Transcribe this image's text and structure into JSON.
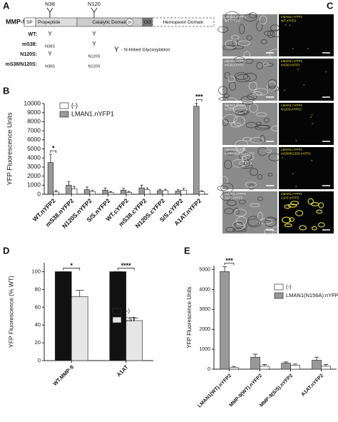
{
  "panel_labels": [
    "A",
    "B",
    "C",
    "D",
    "E"
  ],
  "domain_diagram": {
    "protein": "MMP-9",
    "domains": [
      "SP",
      "Propeptide",
      "Catalytic Domain",
      "Zn",
      "OG",
      "Hemopexin Domain"
    ],
    "sites": [
      "N38",
      "N120"
    ],
    "variants": [
      {
        "name": "WT:",
        "cells": [
          "Y",
          "Y"
        ]
      },
      {
        "name": "mS38:",
        "cells": [
          "N38S",
          "Y"
        ]
      },
      {
        "name": "N120S:",
        "cells": [
          "Y",
          "N120S"
        ]
      },
      {
        "name": "mS38/N120S:",
        "cells": [
          "N38S",
          "N120S"
        ]
      }
    ],
    "legend_symbol": "Y",
    "legend_text": "- N-linked Glycosylation"
  },
  "microscopy": {
    "rows": [
      {
        "left": [
          "LMAN1.nYFP1",
          "WT.nYFP2"
        ],
        "right": [
          "LMAN1.nYFP1",
          "WT.nYFP2"
        ]
      },
      {
        "left": [
          "LMAN1.nYFP1",
          "mS38.nYFP2"
        ],
        "right": [
          "LMAN1.nYFP1",
          "mS38.nYFP2"
        ]
      },
      {
        "left": [
          "LMAN1.nYFP1",
          "N120S.nYFP2"
        ],
        "right": [
          "LMAN1.nYFP1",
          "N120S.nYFP2"
        ]
      },
      {
        "left": [
          "LMAN1.nYFP1",
          "mS38/N120S.nYFP2"
        ],
        "right": [
          "LMAN1.nYFP1",
          "mS38/N120S.nYFP2"
        ]
      },
      {
        "left": [
          "LMAN1.nYFP1",
          "A1AT.nYFP2"
        ],
        "right": [
          "LMAN1.nYFP1",
          "A1AT.nYFP2"
        ]
      }
    ]
  },
  "chart_data": [
    {
      "type": "bar",
      "y_label": "YFP Fluorescence Units",
      "categories": [
        "WT.nYFP2",
        "mS38.nYFP2",
        "N120S.nYFP2",
        "S/S.nYFP2",
        "WT.cYFP2",
        "mS38.cYFP2",
        "N120S.cYFP2",
        "S/S.cYFP2",
        "A1AT.nYFP2"
      ],
      "series": [
        {
          "name": "(-)",
          "color": "#ffffff",
          "values": [
            250,
            600,
            300,
            200,
            200,
            500,
            400,
            450,
            300
          ],
          "errors": [
            150,
            250,
            150,
            100,
            100,
            200,
            150,
            200,
            80
          ]
        },
        {
          "name": "LMAN1.nYFP1",
          "color": "#999999",
          "values": [
            3500,
            1000,
            500,
            450,
            450,
            700,
            400,
            350,
            9700
          ],
          "errors": [
            900,
            400,
            300,
            250,
            200,
            300,
            150,
            150,
            350
          ]
        }
      ],
      "ylim": [
        0,
        10000
      ],
      "yticks": [
        0,
        1000,
        2000,
        3000,
        4000,
        5000,
        6000,
        7000,
        8000,
        9000,
        10000
      ],
      "annotations": [
        {
          "text": "*",
          "category": "WT.nYFP2"
        },
        {
          "text": "***",
          "category": "A1AT.nYFP2"
        }
      ]
    },
    {
      "type": "bar",
      "y_label": "YFP Fluorescence (% WT)",
      "categories": [
        "WT.MMP-9",
        "A1AT"
      ],
      "series": [
        {
          "name": "(-)",
          "color": "#111111",
          "values": [
            100,
            100
          ],
          "errors": [
            0,
            0
          ]
        },
        {
          "name": "CST",
          "color": "#e6e6e6",
          "values": [
            72,
            45
          ],
          "errors": [
            7,
            3
          ]
        }
      ],
      "ylim": [
        0,
        110
      ],
      "yticks": [
        0,
        20,
        40,
        60,
        80,
        100
      ],
      "annotations": [
        {
          "text": "*",
          "category": "WT.MMP-9"
        },
        {
          "text": "****",
          "category": "A1AT"
        }
      ]
    },
    {
      "type": "bar",
      "y_label": "YFP Fluorescence Units",
      "categories": [
        "LMAN1(WT).nYFP2",
        "MMP-9(WT).nYFP2",
        "MMP-9(S/S).nYFP2",
        "A1AT.nYFP2"
      ],
      "series": [
        {
          "name": "(-)",
          "color": "#ffffff",
          "values": [
            80,
            150,
            200,
            150
          ],
          "errors": [
            60,
            80,
            60,
            80
          ]
        },
        {
          "name": "LMAN1(N156A).nYFP1",
          "color": "#999999",
          "values": [
            4900,
            600,
            300,
            450
          ],
          "errors": [
            250,
            150,
            60,
            150
          ]
        }
      ],
      "ylim": [
        0,
        5200
      ],
      "yticks": [
        0,
        1000,
        2000,
        3000,
        4000,
        5000
      ],
      "annotations": [
        {
          "text": "***",
          "category": "LMAN1(WT).nYFP2"
        }
      ]
    }
  ]
}
